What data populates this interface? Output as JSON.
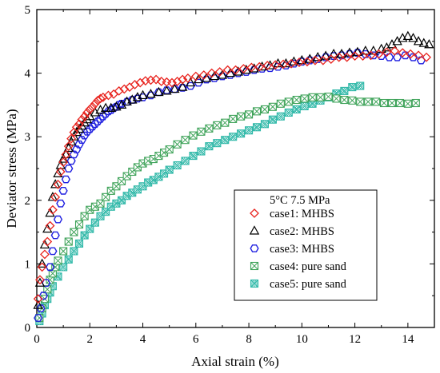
{
  "chart_data": {
    "type": "scatter",
    "title": "",
    "xlabel": "Axial strain (%)",
    "ylabel": "Deviator stress (MPa)",
    "xlim": [
      0,
      15
    ],
    "ylim": [
      0,
      5
    ],
    "xticks": [
      0,
      2,
      4,
      6,
      8,
      10,
      12,
      14
    ],
    "yticks": [
      0,
      1,
      2,
      3,
      4,
      5
    ],
    "grid": false,
    "legend_position": "lower-right",
    "legend_title": "5°C   7.5 MPa",
    "series": [
      {
        "name": "case1: MHBS",
        "marker": "diamond",
        "color": "#e8231e",
        "x": [
          0.05,
          0.12,
          0.2,
          0.3,
          0.4,
          0.5,
          0.6,
          0.7,
          0.8,
          0.9,
          1.0,
          1.1,
          1.2,
          1.3,
          1.4,
          1.5,
          1.6,
          1.7,
          1.8,
          1.9,
          2.0,
          2.1,
          2.2,
          2.3,
          2.4,
          2.5,
          2.7,
          2.9,
          3.1,
          3.3,
          3.5,
          3.7,
          3.9,
          4.1,
          4.3,
          4.5,
          4.7,
          4.9,
          5.1,
          5.3,
          5.5,
          5.7,
          6.0,
          6.3,
          6.6,
          6.9,
          7.2,
          7.5,
          7.8,
          8.1,
          8.4,
          8.7,
          9.0,
          9.3,
          9.6,
          9.9,
          10.2,
          10.5,
          10.8,
          11.1,
          11.4,
          11.7,
          12.0,
          12.3,
          12.6,
          12.9,
          13.2,
          13.5,
          13.8,
          14.1,
          14.4,
          14.7
        ],
        "y": [
          0.45,
          0.75,
          0.95,
          1.15,
          1.35,
          1.6,
          1.85,
          2.05,
          2.25,
          2.45,
          2.6,
          2.72,
          2.85,
          2.97,
          3.07,
          3.15,
          3.2,
          3.27,
          3.32,
          3.38,
          3.43,
          3.47,
          3.52,
          3.57,
          3.6,
          3.62,
          3.65,
          3.67,
          3.72,
          3.75,
          3.78,
          3.82,
          3.85,
          3.88,
          3.89,
          3.9,
          3.87,
          3.86,
          3.85,
          3.87,
          3.9,
          3.92,
          3.95,
          3.97,
          4.0,
          4.02,
          4.05,
          4.05,
          4.07,
          4.09,
          4.1,
          4.12,
          4.13,
          4.14,
          4.15,
          4.17,
          4.18,
          4.2,
          4.2,
          4.22,
          4.25,
          4.25,
          4.27,
          4.27,
          4.28,
          4.3,
          4.33,
          4.35,
          4.32,
          4.3,
          4.28,
          4.25
        ]
      },
      {
        "name": "case2: MHBS",
        "marker": "triangle",
        "color": "#000000",
        "x": [
          0.05,
          0.12,
          0.2,
          0.3,
          0.4,
          0.5,
          0.6,
          0.7,
          0.8,
          0.9,
          1.0,
          1.1,
          1.2,
          1.3,
          1.4,
          1.5,
          1.6,
          1.7,
          1.8,
          1.9,
          2.0,
          2.2,
          2.4,
          2.6,
          2.8,
          3.0,
          3.2,
          3.4,
          3.6,
          3.8,
          4.0,
          4.3,
          4.6,
          4.9,
          5.2,
          5.5,
          5.8,
          6.1,
          6.4,
          6.7,
          7.0,
          7.3,
          7.6,
          7.9,
          8.2,
          8.5,
          8.8,
          9.1,
          9.4,
          9.7,
          10.0,
          10.3,
          10.6,
          10.9,
          11.2,
          11.5,
          11.8,
          12.1,
          12.4,
          12.7,
          13.0,
          13.2,
          13.4,
          13.6,
          13.8,
          14.0,
          14.2,
          14.4,
          14.6,
          14.8
        ],
        "y": [
          0.35,
          0.7,
          1.0,
          1.3,
          1.55,
          1.8,
          2.05,
          2.25,
          2.42,
          2.55,
          2.65,
          2.72,
          2.82,
          2.92,
          3.0,
          3.07,
          3.12,
          3.17,
          3.22,
          3.27,
          3.32,
          3.38,
          3.42,
          3.45,
          3.45,
          3.47,
          3.5,
          3.55,
          3.58,
          3.62,
          3.65,
          3.67,
          3.7,
          3.72,
          3.75,
          3.78,
          3.85,
          3.9,
          3.92,
          3.95,
          3.97,
          4.0,
          4.02,
          4.05,
          4.07,
          4.1,
          4.12,
          4.15,
          4.15,
          4.18,
          4.2,
          4.22,
          4.25,
          4.27,
          4.3,
          4.3,
          4.32,
          4.33,
          4.35,
          4.35,
          4.38,
          4.4,
          4.45,
          4.5,
          4.55,
          4.58,
          4.55,
          4.5,
          4.47,
          4.45
        ]
      },
      {
        "name": "case3: MHBS",
        "marker": "hexagon",
        "color": "#1f1fe0",
        "x": [
          0.05,
          0.15,
          0.25,
          0.35,
          0.5,
          0.6,
          0.7,
          0.8,
          0.9,
          1.0,
          1.1,
          1.2,
          1.3,
          1.4,
          1.5,
          1.6,
          1.7,
          1.8,
          1.9,
          2.0,
          2.1,
          2.2,
          2.3,
          2.4,
          2.5,
          2.6,
          2.7,
          2.8,
          2.9,
          3.0,
          3.1,
          3.2,
          3.4,
          3.6,
          3.8,
          4.0,
          4.3,
          4.6,
          4.9,
          5.2,
          5.5,
          5.8,
          6.1,
          6.4,
          6.7,
          7.0,
          7.3,
          7.6,
          7.9,
          8.2,
          8.5,
          8.8,
          9.1,
          9.4,
          9.7,
          10.0,
          10.3,
          10.6,
          10.9,
          11.2,
          11.5,
          11.8,
          12.1,
          12.4,
          12.7,
          13.0,
          13.3,
          13.6,
          13.9,
          14.2,
          14.5
        ],
        "y": [
          0.15,
          0.3,
          0.5,
          0.7,
          0.95,
          1.2,
          1.45,
          1.7,
          1.95,
          2.15,
          2.33,
          2.5,
          2.62,
          2.72,
          2.8,
          2.88,
          2.95,
          3.02,
          3.08,
          3.12,
          3.16,
          3.2,
          3.24,
          3.28,
          3.32,
          3.36,
          3.4,
          3.42,
          3.45,
          3.47,
          3.5,
          3.52,
          3.55,
          3.58,
          3.6,
          3.62,
          3.65,
          3.7,
          3.73,
          3.75,
          3.77,
          3.8,
          3.85,
          3.9,
          3.92,
          3.95,
          3.97,
          4.0,
          4.02,
          4.05,
          4.07,
          4.08,
          4.1,
          4.12,
          4.15,
          4.18,
          4.2,
          4.22,
          4.25,
          4.27,
          4.28,
          4.3,
          4.32,
          4.3,
          4.28,
          4.27,
          4.25,
          4.25,
          4.28,
          4.25,
          4.2
        ]
      },
      {
        "name": "case4: pure sand",
        "marker": "square-x",
        "color": "#3fa35a",
        "x": [
          0.1,
          0.2,
          0.3,
          0.4,
          0.5,
          0.6,
          0.7,
          0.8,
          1.0,
          1.2,
          1.4,
          1.6,
          1.8,
          2.0,
          2.2,
          2.4,
          2.6,
          2.8,
          3.0,
          3.2,
          3.4,
          3.6,
          3.8,
          4.0,
          4.2,
          4.4,
          4.6,
          4.8,
          5.0,
          5.3,
          5.6,
          5.9,
          6.2,
          6.5,
          6.8,
          7.1,
          7.4,
          7.7,
          8.0,
          8.3,
          8.6,
          8.9,
          9.2,
          9.5,
          9.8,
          10.1,
          10.4,
          10.7,
          11.0,
          11.3,
          11.6,
          11.9,
          12.2,
          12.5,
          12.8,
          13.1,
          13.4,
          13.7,
          14.0,
          14.3
        ],
        "y": [
          0.15,
          0.3,
          0.45,
          0.6,
          0.75,
          0.85,
          0.95,
          1.05,
          1.2,
          1.35,
          1.5,
          1.62,
          1.75,
          1.85,
          1.9,
          1.95,
          2.05,
          2.15,
          2.22,
          2.3,
          2.38,
          2.45,
          2.52,
          2.58,
          2.62,
          2.65,
          2.7,
          2.75,
          2.8,
          2.88,
          2.95,
          3.02,
          3.08,
          3.13,
          3.18,
          3.22,
          3.28,
          3.32,
          3.35,
          3.4,
          3.43,
          3.47,
          3.52,
          3.55,
          3.58,
          3.6,
          3.62,
          3.62,
          3.63,
          3.6,
          3.58,
          3.57,
          3.55,
          3.55,
          3.55,
          3.53,
          3.53,
          3.53,
          3.52,
          3.53
        ]
      },
      {
        "name": "case5: pure sand",
        "marker": "square-x-hatched",
        "color": "#2fb8a8",
        "x": [
          0.1,
          0.2,
          0.3,
          0.4,
          0.5,
          0.6,
          0.8,
          1.0,
          1.2,
          1.4,
          1.6,
          1.8,
          2.0,
          2.2,
          2.4,
          2.6,
          2.8,
          3.0,
          3.2,
          3.4,
          3.6,
          3.8,
          4.0,
          4.2,
          4.4,
          4.6,
          4.8,
          5.0,
          5.3,
          5.6,
          5.9,
          6.2,
          6.5,
          6.8,
          7.1,
          7.4,
          7.7,
          8.0,
          8.3,
          8.6,
          8.9,
          9.2,
          9.5,
          9.8,
          10.1,
          10.4,
          10.7,
          11.0,
          11.3,
          11.6,
          11.9,
          12.2
        ],
        "y": [
          0.1,
          0.22,
          0.35,
          0.45,
          0.55,
          0.65,
          0.8,
          0.95,
          1.07,
          1.2,
          1.32,
          1.45,
          1.55,
          1.65,
          1.75,
          1.82,
          1.9,
          1.95,
          2.0,
          2.07,
          2.12,
          2.17,
          2.22,
          2.28,
          2.32,
          2.37,
          2.42,
          2.48,
          2.55,
          2.62,
          2.7,
          2.77,
          2.85,
          2.9,
          2.95,
          3.0,
          3.05,
          3.1,
          3.15,
          3.2,
          3.27,
          3.32,
          3.38,
          3.43,
          3.48,
          3.52,
          3.57,
          3.62,
          3.68,
          3.72,
          3.78,
          3.8
        ]
      }
    ]
  }
}
